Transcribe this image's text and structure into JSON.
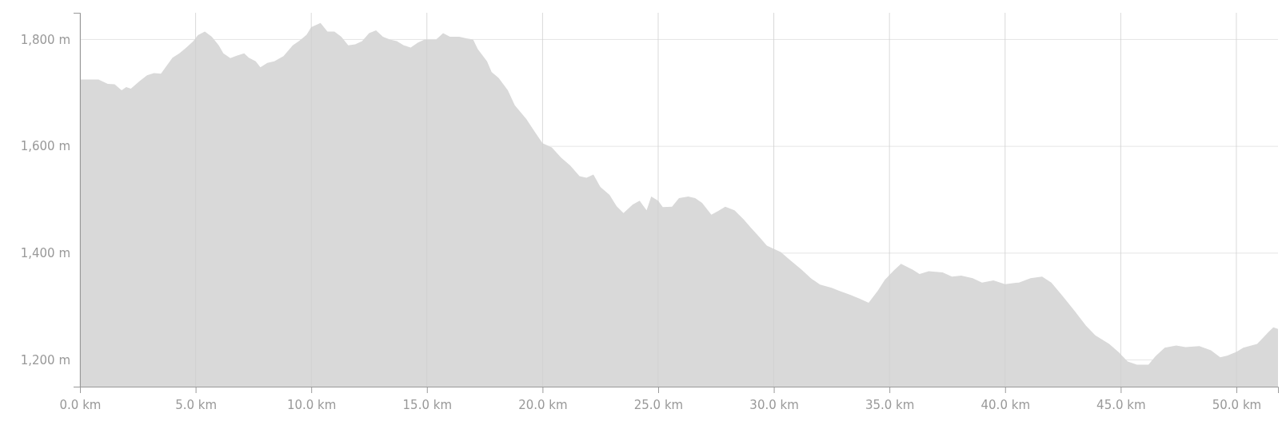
{
  "chart_data": {
    "type": "area",
    "xlim": [
      0,
      51.8
    ],
    "ylim": [
      1150,
      1850
    ],
    "xticks": [
      {
        "value": 0,
        "label": "0.0 km"
      },
      {
        "value": 5,
        "label": "5.0 km"
      },
      {
        "value": 10,
        "label": "10.0 km"
      },
      {
        "value": 15,
        "label": "15.0 km"
      },
      {
        "value": 20,
        "label": "20.0 km"
      },
      {
        "value": 25,
        "label": "25.0 km"
      },
      {
        "value": 30,
        "label": "30.0 km"
      },
      {
        "value": 35,
        "label": "35.0 km"
      },
      {
        "value": 40,
        "label": "40.0 km"
      },
      {
        "value": 45,
        "label": "45.0 km"
      },
      {
        "value": 50,
        "label": "50.0 km"
      }
    ],
    "yticks": [
      {
        "value": 1200,
        "label": "1,200 m"
      },
      {
        "value": 1400,
        "label": "1,400 m"
      },
      {
        "value": 1600,
        "label": "1,600 m"
      },
      {
        "value": 1800,
        "label": "1,800 m"
      }
    ],
    "grid": true,
    "series": [
      {
        "color": "#d9d9d9",
        "x": [
          0,
          0.8,
          1.2,
          1.5,
          1.8,
          2.0,
          2.2,
          2.6,
          2.9,
          3.2,
          3.5,
          3.7,
          4.0,
          4.3,
          4.6,
          4.9,
          5.1,
          5.4,
          5.7,
          6.0,
          6.2,
          6.5,
          6.8,
          7.1,
          7.3,
          7.6,
          7.8,
          8.1,
          8.4,
          8.8,
          9.2,
          9.5,
          9.8,
          10.0,
          10.4,
          10.7,
          11.0,
          11.3,
          11.6,
          11.9,
          12.2,
          12.5,
          12.8,
          13.1,
          13.4,
          13.7,
          14.0,
          14.3,
          14.6,
          14.9,
          15.4,
          15.7,
          16.0,
          16.4,
          16.7,
          17.0,
          17.2,
          17.6,
          17.8,
          18.1,
          18.5,
          18.8,
          19.3,
          19.7,
          20.0,
          20.4,
          20.8,
          21.2,
          21.6,
          21.9,
          22.2,
          22.5,
          22.9,
          23.2,
          23.5,
          23.9,
          24.2,
          24.5,
          24.7,
          25.0,
          25.2,
          25.6,
          25.9,
          26.3,
          26.6,
          26.9,
          27.3,
          27.6,
          27.9,
          28.3,
          28.7,
          29.0,
          29.4,
          29.7,
          30.3,
          30.7,
          31.2,
          31.6,
          32.0,
          32.5,
          32.8,
          33.3,
          33.7,
          34.1,
          34.5,
          34.8,
          35.2,
          35.5,
          36.0,
          36.3,
          36.7,
          37.3,
          37.7,
          38.1,
          38.6,
          39.0,
          39.5,
          40.0,
          40.6,
          41.1,
          41.6,
          42.0,
          42.5,
          43.0,
          43.5,
          43.9,
          44.5,
          44.9,
          45.3,
          45.7,
          46.2,
          46.5,
          46.9,
          47.4,
          47.8,
          48.4,
          48.9,
          49.3,
          49.6,
          50.0,
          50.3,
          50.9,
          51.4,
          51.6,
          51.8
        ],
        "values": [
          1725,
          1725,
          1717,
          1716,
          1705,
          1711,
          1708,
          1723,
          1733,
          1737,
          1736,
          1748,
          1766,
          1774,
          1785,
          1797,
          1808,
          1815,
          1805,
          1789,
          1774,
          1765,
          1770,
          1774,
          1766,
          1759,
          1748,
          1756,
          1759,
          1769,
          1789,
          1798,
          1809,
          1823,
          1831,
          1815,
          1815,
          1805,
          1789,
          1791,
          1797,
          1812,
          1817,
          1805,
          1800,
          1797,
          1789,
          1785,
          1794,
          1800,
          1800,
          1812,
          1805,
          1805,
          1802,
          1800,
          1782,
          1759,
          1739,
          1728,
          1705,
          1677,
          1651,
          1625,
          1606,
          1598,
          1579,
          1564,
          1544,
          1541,
          1547,
          1524,
          1509,
          1488,
          1475,
          1491,
          1498,
          1480,
          1506,
          1498,
          1486,
          1487,
          1503,
          1506,
          1503,
          1494,
          1472,
          1479,
          1487,
          1480,
          1463,
          1448,
          1429,
          1414,
          1402,
          1387,
          1369,
          1353,
          1341,
          1335,
          1330,
          1322,
          1315,
          1307,
          1330,
          1350,
          1368,
          1380,
          1369,
          1361,
          1366,
          1364,
          1356,
          1358,
          1353,
          1345,
          1349,
          1342,
          1345,
          1353,
          1356,
          1345,
          1319,
          1292,
          1264,
          1246,
          1230,
          1215,
          1197,
          1191,
          1191,
          1207,
          1223,
          1227,
          1224,
          1226,
          1218,
          1205,
          1208,
          1215,
          1223,
          1230,
          1253,
          1261,
          1258
        ]
      }
    ]
  }
}
